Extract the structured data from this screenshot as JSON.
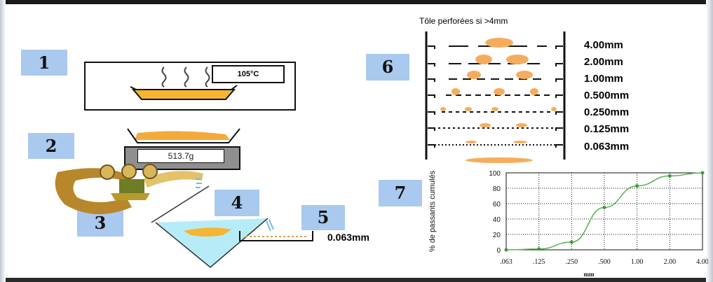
{
  "steps": [
    "1",
    "2",
    "3",
    "4",
    "5",
    "6",
    "7"
  ],
  "oven_temperature": "105°C",
  "scale_reading": "513.7g",
  "wash_sieve": "0.063mm",
  "sieve_stack": {
    "title": "Tôle perforées si >4mm",
    "sizes": [
      "4.00mm",
      "2.00mm",
      "1.00mm",
      "0.500mm",
      "0.250mm",
      "0.125mm",
      "0.063mm"
    ]
  },
  "icons": [
    "heat-wave-icon",
    "drying-tray-icon",
    "balance-tray-icon",
    "splitter-icon",
    "funnel-icon",
    "sieve-icon"
  ],
  "colors": {
    "step_box": "#a9c9ee",
    "aggregate": "#f5ad5d",
    "water": "#b6ecf7",
    "curve": "#59b04f"
  },
  "chart_data": {
    "type": "line",
    "categories": [
      ".063",
      ".125",
      ".250",
      ".500",
      "1.00",
      "2.00",
      "4.00"
    ],
    "series": [
      {
        "values": [
          0,
          1,
          10,
          55,
          83,
          96,
          100
        ]
      }
    ],
    "xlabel": "mm",
    "ylabel": "% de passants cumulés",
    "yticks": [
      "0",
      "20",
      "40",
      "60",
      "80",
      "100"
    ],
    "ylim": [
      0,
      100
    ],
    "grid": true
  }
}
